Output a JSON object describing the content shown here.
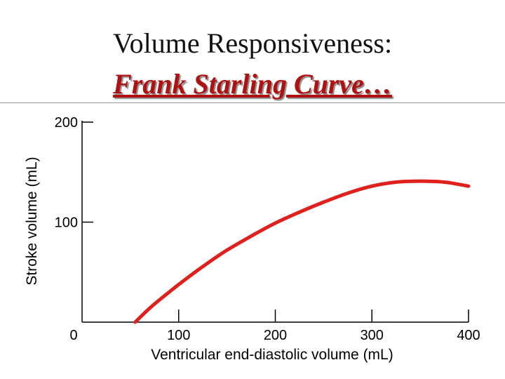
{
  "slide": {
    "title_line1": "Volume Responsiveness:",
    "title_line2": "Frank Starling Curve…"
  },
  "colors": {
    "curve": "#e0201c",
    "title_accent": "#b01010",
    "axis": "#000000"
  },
  "chart_data": {
    "type": "line",
    "xlabel": "Ventricular end-diastolic volume (mL)",
    "ylabel": "Stroke volume (mL)",
    "xlim": [
      0,
      400
    ],
    "ylim": [
      0,
      200
    ],
    "x_ticks": [
      100,
      200,
      300,
      400
    ],
    "y_ticks": [
      100,
      200
    ],
    "origin_label": "0",
    "grid": false,
    "series": [
      {
        "x": [
          55,
          70,
          90,
          110,
          130,
          150,
          175,
          200,
          225,
          250,
          275,
          300,
          325,
          350,
          375,
          400
        ],
        "y": [
          0,
          14,
          30,
          45,
          59,
          72,
          86,
          99,
          110,
          120,
          129,
          136,
          140,
          141,
          140,
          136
        ]
      }
    ]
  }
}
